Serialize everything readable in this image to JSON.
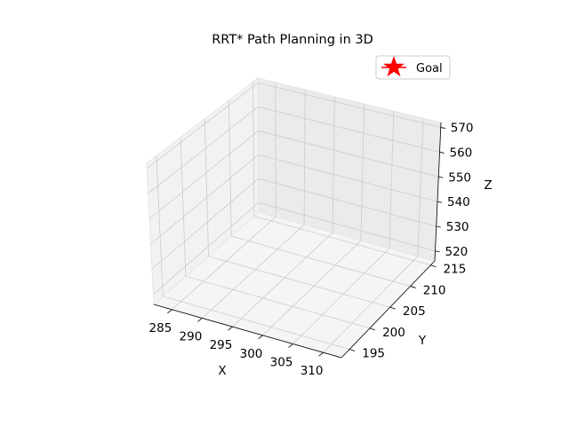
{
  "chart_data": {
    "type": "scatter",
    "projection": "3d",
    "title": "RRT* Path Planning in 3D",
    "xlabel": "X",
    "ylabel": "Y",
    "zlabel": "Z",
    "xlim": [
      282,
      313
    ],
    "ylim": [
      193,
      216
    ],
    "zlim": [
      516,
      572
    ],
    "xticks": [
      285,
      290,
      295,
      300,
      305,
      310
    ],
    "yticks": [
      195,
      200,
      205,
      210,
      215
    ],
    "zticks": [
      520,
      530,
      540,
      550,
      560,
      570
    ],
    "grid": true,
    "legend": {
      "placement": "top-right",
      "entries": [
        "Goal"
      ]
    },
    "series": [
      {
        "name": "Goal",
        "marker": "star",
        "color": "#ff0000",
        "points": []
      }
    ]
  }
}
